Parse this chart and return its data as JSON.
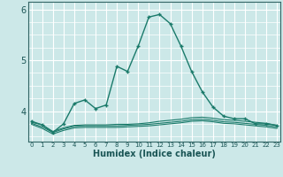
{
  "xlabel": "Humidex (Indice chaleur)",
  "background_color": "#cce8e8",
  "grid_color": "#ffffff",
  "line_color": "#1a7a6a",
  "x_values": [
    0,
    1,
    2,
    3,
    4,
    5,
    6,
    7,
    8,
    9,
    10,
    11,
    12,
    13,
    14,
    15,
    16,
    17,
    18,
    19,
    20,
    21,
    22,
    23
  ],
  "series1": [
    3.8,
    3.73,
    3.58,
    3.75,
    4.15,
    4.22,
    4.05,
    4.12,
    4.88,
    4.78,
    5.28,
    5.85,
    5.9,
    5.72,
    5.28,
    4.78,
    4.38,
    4.08,
    3.9,
    3.85,
    3.85,
    3.75,
    3.75,
    3.72
  ],
  "series2": [
    3.78,
    3.73,
    3.6,
    3.67,
    3.72,
    3.73,
    3.73,
    3.73,
    3.74,
    3.74,
    3.75,
    3.77,
    3.8,
    3.82,
    3.84,
    3.87,
    3.88,
    3.86,
    3.83,
    3.82,
    3.8,
    3.78,
    3.76,
    3.72
  ],
  "series3": [
    3.76,
    3.69,
    3.58,
    3.65,
    3.7,
    3.71,
    3.71,
    3.71,
    3.71,
    3.72,
    3.73,
    3.74,
    3.76,
    3.78,
    3.8,
    3.83,
    3.84,
    3.82,
    3.79,
    3.78,
    3.76,
    3.74,
    3.72,
    3.69
  ],
  "series4": [
    3.74,
    3.66,
    3.55,
    3.62,
    3.67,
    3.68,
    3.68,
    3.68,
    3.68,
    3.69,
    3.7,
    3.71,
    3.73,
    3.75,
    3.77,
    3.8,
    3.81,
    3.79,
    3.76,
    3.75,
    3.73,
    3.71,
    3.69,
    3.66
  ],
  "ylim": [
    3.4,
    6.15
  ],
  "yticks": [
    4,
    5,
    6
  ],
  "xticks": [
    0,
    1,
    2,
    3,
    4,
    5,
    6,
    7,
    8,
    9,
    10,
    11,
    12,
    13,
    14,
    15,
    16,
    17,
    18,
    19,
    20,
    21,
    22,
    23
  ],
  "xlim": [
    -0.3,
    23.3
  ]
}
